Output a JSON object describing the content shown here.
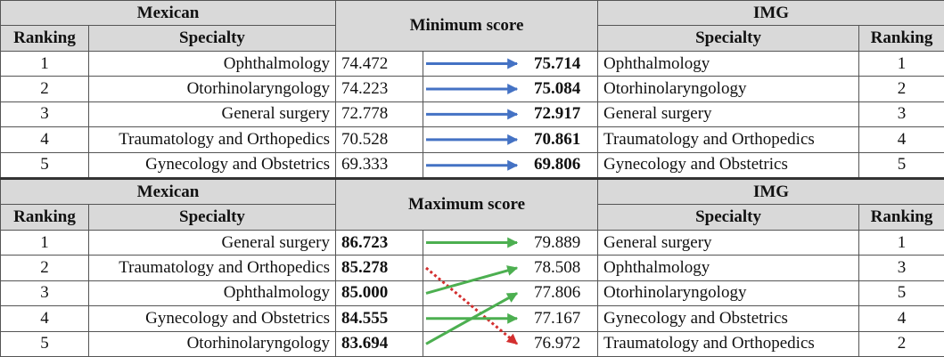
{
  "min_block": {
    "left_group": "Mexican",
    "center_title": "Minimum score",
    "right_group": "IMG",
    "col_ranking": "Ranking",
    "col_specialty": "Specialty",
    "rows": [
      {
        "mx_rank": "1",
        "mx_spec": "Ophthalmology",
        "mx_score": "74.472",
        "img_score": "75.714",
        "img_spec": "Ophthalmology",
        "img_rank": "1"
      },
      {
        "mx_rank": "2",
        "mx_spec": "Otorhinolaryngology",
        "mx_score": "74.223",
        "img_score": "75.084",
        "img_spec": "Otorhinolaryngology",
        "img_rank": "2"
      },
      {
        "mx_rank": "3",
        "mx_spec": "General surgery",
        "mx_score": "72.778",
        "img_score": "72.917",
        "img_spec": "General surgery",
        "img_rank": "3"
      },
      {
        "mx_rank": "4",
        "mx_spec": "Traumatology and Orthopedics",
        "mx_score": "70.528",
        "img_score": "70.861",
        "img_spec": "Traumatology and Orthopedics",
        "img_rank": "4"
      },
      {
        "mx_rank": "5",
        "mx_spec": "Gynecology and Obstetrics",
        "mx_score": "69.333",
        "img_score": "69.806",
        "img_spec": "Gynecology and Obstetrics",
        "img_rank": "5"
      }
    ],
    "arrows": [
      {
        "from_row": 1,
        "to_row": 1,
        "color": "#4472c4",
        "style": "solid"
      },
      {
        "from_row": 2,
        "to_row": 2,
        "color": "#4472c4",
        "style": "solid"
      },
      {
        "from_row": 3,
        "to_row": 3,
        "color": "#4472c4",
        "style": "solid"
      },
      {
        "from_row": 4,
        "to_row": 4,
        "color": "#4472c4",
        "style": "solid"
      },
      {
        "from_row": 5,
        "to_row": 5,
        "color": "#4472c4",
        "style": "solid"
      }
    ]
  },
  "max_block": {
    "left_group": "Mexican",
    "center_title": "Maximum score",
    "right_group": "IMG",
    "col_ranking": "Ranking",
    "col_specialty": "Specialty",
    "rows": [
      {
        "mx_rank": "1",
        "mx_spec": "General surgery",
        "mx_score": "86.723",
        "img_score": "79.889",
        "img_spec": "General surgery",
        "img_rank": "1"
      },
      {
        "mx_rank": "2",
        "mx_spec": "Traumatology and Orthopedics",
        "mx_score": "85.278",
        "img_score": "78.508",
        "img_spec": "Ophthalmology",
        "img_rank": "3"
      },
      {
        "mx_rank": "3",
        "mx_spec": "Ophthalmology",
        "mx_score": "85.000",
        "img_score": "77.806",
        "img_spec": "Otorhinolaryngology",
        "img_rank": "5"
      },
      {
        "mx_rank": "4",
        "mx_spec": "Gynecology and Obstetrics",
        "mx_score": "84.555",
        "img_score": "77.167",
        "img_spec": "Gynecology and Obstetrics",
        "img_rank": "4"
      },
      {
        "mx_rank": "5",
        "mx_spec": "Otorhinolaryngology",
        "mx_score": "83.694",
        "img_score": "76.972",
        "img_spec": "Traumatology and Orthopedics",
        "img_rank": "2"
      }
    ],
    "arrows": [
      {
        "from_row": 1,
        "to_row": 1,
        "color": "#4caf50",
        "style": "solid"
      },
      {
        "from_row": 2,
        "to_row": 5,
        "color": "#d32f2f",
        "style": "dotted"
      },
      {
        "from_row": 3,
        "to_row": 2,
        "color": "#4caf50",
        "style": "solid"
      },
      {
        "from_row": 4,
        "to_row": 4,
        "color": "#4caf50",
        "style": "solid"
      },
      {
        "from_row": 5,
        "to_row": 3,
        "color": "#4caf50",
        "style": "solid"
      }
    ]
  }
}
